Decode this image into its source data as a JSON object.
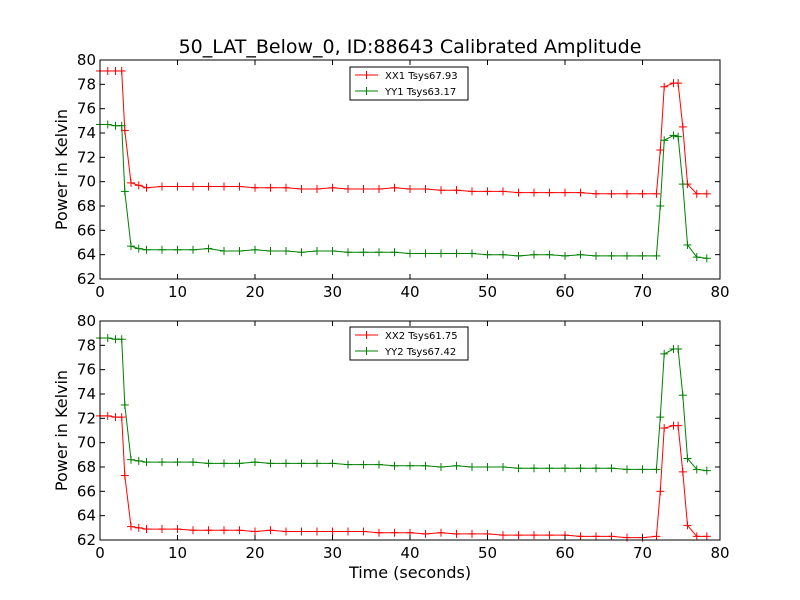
{
  "title": "50_LAT_Below_0, ID:88643 Calibrated Amplitude",
  "chart_data": [
    {
      "type": "line",
      "xlabel": "",
      "ylabel": "Power in Kelvin",
      "xlim": [
        0,
        80
      ],
      "ylim": [
        62,
        80
      ],
      "xticks": [
        "0",
        "10",
        "20",
        "30",
        "40",
        "50",
        "60",
        "70",
        "80"
      ],
      "yticks": [
        "62",
        "64",
        "66",
        "68",
        "70",
        "72",
        "74",
        "76",
        "78",
        "80"
      ],
      "legend_position": "top-center",
      "series": [
        {
          "name": "XX1 Tsys67.93",
          "color": "#ff0000",
          "x": [
            0,
            1,
            2,
            2.8,
            3.2,
            4,
            5,
            6,
            8,
            10,
            12,
            14,
            16,
            18,
            20,
            22,
            24,
            26,
            28,
            30,
            32,
            34,
            36,
            38,
            40,
            42,
            44,
            46,
            48,
            50,
            52,
            54,
            56,
            58,
            60,
            62,
            64,
            66,
            68,
            70,
            71.8,
            72.3,
            72.8,
            74,
            74.6,
            75.2,
            75.8,
            77,
            78.3
          ],
          "y": [
            79.1,
            79.1,
            79.1,
            79.1,
            74.2,
            69.9,
            69.7,
            69.5,
            69.6,
            69.6,
            69.6,
            69.6,
            69.6,
            69.6,
            69.5,
            69.5,
            69.5,
            69.4,
            69.4,
            69.5,
            69.4,
            69.4,
            69.4,
            69.5,
            69.4,
            69.4,
            69.3,
            69.3,
            69.2,
            69.2,
            69.2,
            69.1,
            69.1,
            69.1,
            69.1,
            69.1,
            69.0,
            69.0,
            69.0,
            69.0,
            69.0,
            72.6,
            77.8,
            78.1,
            78.1,
            74.5,
            69.8,
            69.0,
            69.0
          ]
        },
        {
          "name": "YY1 Tsys63.17",
          "color": "#008000",
          "x": [
            0,
            1,
            2,
            2.8,
            3.2,
            4,
            5,
            6,
            8,
            10,
            12,
            14,
            16,
            18,
            20,
            22,
            24,
            26,
            28,
            30,
            32,
            34,
            36,
            38,
            40,
            42,
            44,
            46,
            48,
            50,
            52,
            54,
            56,
            58,
            60,
            62,
            64,
            66,
            68,
            70,
            71.8,
            72.3,
            72.8,
            74,
            74.6,
            75.2,
            75.8,
            77,
            78.3
          ],
          "y": [
            74.7,
            74.7,
            74.6,
            74.6,
            69.2,
            64.7,
            64.5,
            64.4,
            64.4,
            64.4,
            64.4,
            64.5,
            64.3,
            64.3,
            64.4,
            64.3,
            64.3,
            64.2,
            64.3,
            64.3,
            64.2,
            64.2,
            64.2,
            64.2,
            64.1,
            64.1,
            64.1,
            64.1,
            64.1,
            64.0,
            64.0,
            63.9,
            64.0,
            64.0,
            63.9,
            64.0,
            63.9,
            63.9,
            63.9,
            63.9,
            63.9,
            68.0,
            73.4,
            73.8,
            73.7,
            69.8,
            64.8,
            63.8,
            63.7
          ]
        }
      ]
    },
    {
      "type": "line",
      "xlabel": "Time (seconds)",
      "ylabel": "Power in Kelvin",
      "xlim": [
        0,
        80
      ],
      "ylim": [
        62,
        80
      ],
      "xticks": [
        "0",
        "10",
        "20",
        "30",
        "40",
        "50",
        "60",
        "70",
        "80"
      ],
      "yticks": [
        "62",
        "64",
        "66",
        "68",
        "70",
        "72",
        "74",
        "76",
        "78",
        "80"
      ],
      "legend_position": "top-center",
      "series": [
        {
          "name": "XX2 Tsys61.75",
          "color": "#ff0000",
          "x": [
            0,
            1,
            2,
            2.8,
            3.2,
            4,
            5,
            6,
            8,
            10,
            12,
            14,
            16,
            18,
            20,
            22,
            24,
            26,
            28,
            30,
            32,
            34,
            36,
            38,
            40,
            42,
            44,
            46,
            48,
            50,
            52,
            54,
            56,
            58,
            60,
            62,
            64,
            66,
            68,
            70,
            71.8,
            72.3,
            72.8,
            74,
            74.6,
            75.2,
            75.8,
            77,
            78.3
          ],
          "y": [
            72.2,
            72.2,
            72.1,
            72.1,
            67.3,
            63.1,
            63.0,
            62.9,
            62.9,
            62.9,
            62.8,
            62.8,
            62.8,
            62.8,
            62.7,
            62.8,
            62.7,
            62.7,
            62.7,
            62.7,
            62.7,
            62.7,
            62.6,
            62.6,
            62.6,
            62.5,
            62.6,
            62.5,
            62.5,
            62.5,
            62.4,
            62.4,
            62.4,
            62.4,
            62.4,
            62.3,
            62.3,
            62.3,
            62.2,
            62.2,
            62.3,
            66.0,
            71.2,
            71.4,
            71.4,
            67.6,
            63.2,
            62.3,
            62.3
          ]
        },
        {
          "name": "YY2 Tsys67.42",
          "color": "#008000",
          "x": [
            0,
            1,
            2,
            2.8,
            3.2,
            4,
            5,
            6,
            8,
            10,
            12,
            14,
            16,
            18,
            20,
            22,
            24,
            26,
            28,
            30,
            32,
            34,
            36,
            38,
            40,
            42,
            44,
            46,
            48,
            50,
            52,
            54,
            56,
            58,
            60,
            62,
            64,
            66,
            68,
            70,
            71.8,
            72.3,
            72.8,
            74,
            74.6,
            75.2,
            75.8,
            77,
            78.3
          ],
          "y": [
            78.6,
            78.6,
            78.5,
            78.5,
            73.1,
            68.6,
            68.5,
            68.4,
            68.4,
            68.4,
            68.4,
            68.3,
            68.3,
            68.3,
            68.4,
            68.3,
            68.3,
            68.3,
            68.3,
            68.3,
            68.2,
            68.2,
            68.2,
            68.1,
            68.1,
            68.1,
            68.0,
            68.1,
            68.0,
            68.0,
            68.0,
            67.9,
            67.9,
            67.9,
            67.9,
            67.9,
            67.9,
            67.9,
            67.8,
            67.8,
            67.8,
            72.1,
            77.3,
            77.7,
            77.7,
            73.9,
            68.7,
            67.8,
            67.7
          ]
        }
      ]
    }
  ]
}
